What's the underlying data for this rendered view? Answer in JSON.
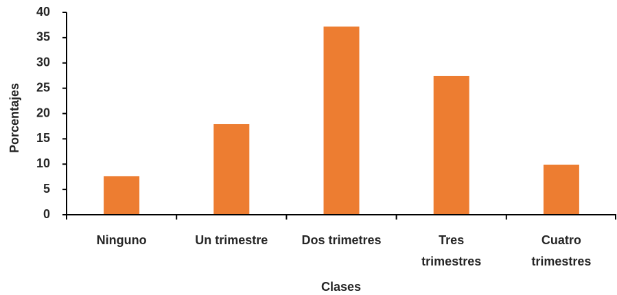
{
  "chart_data": {
    "type": "bar",
    "categories": [
      "Ninguno",
      "Un trimestre",
      "Dos trimetres",
      "Tres\ntrimestres",
      "Cuatro\ntrimestres"
    ],
    "values": [
      7.6,
      17.9,
      37.2,
      27.4,
      9.9
    ],
    "color": "#ed7d31",
    "xlabel": "Clases",
    "ylabel": "Porcentajes",
    "ylim": [
      0,
      40
    ],
    "yticks": [
      0,
      5,
      10,
      15,
      20,
      25,
      30,
      35,
      40
    ],
    "grid": false
  }
}
